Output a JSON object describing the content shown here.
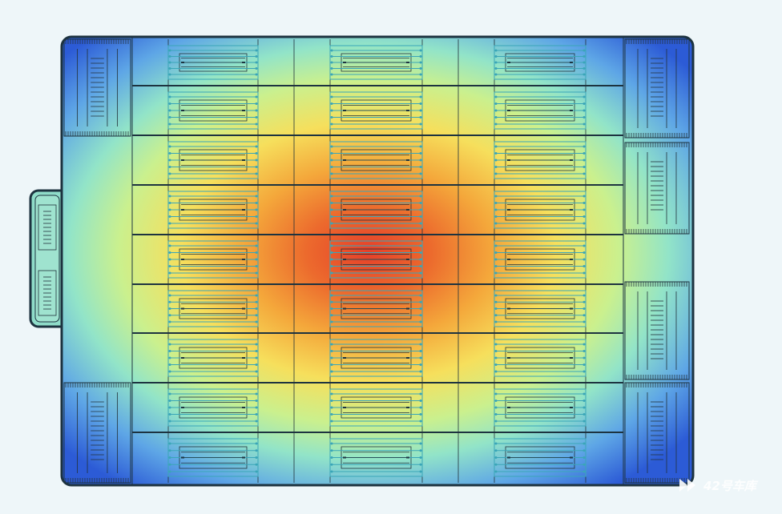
{
  "watermark": "42号车库"
}
